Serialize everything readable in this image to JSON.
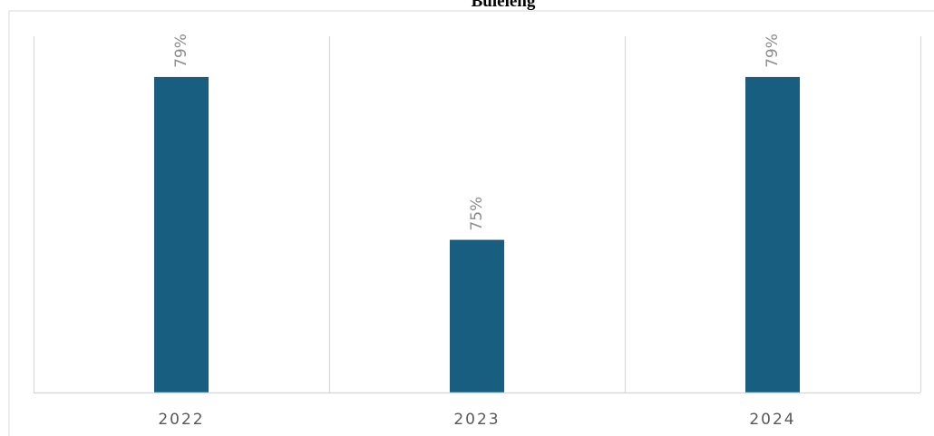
{
  "chart_data": {
    "type": "bar",
    "title": "Buleleng",
    "categories": [
      "2022",
      "2023",
      "2024"
    ],
    "values": [
      79,
      75,
      79
    ],
    "data_labels": [
      "79%",
      "75%",
      "79%"
    ],
    "value_unit": "%",
    "ylim": [
      71.25,
      80
    ],
    "y_axis_visible": false,
    "grid": "vertical category separators",
    "legend": "none",
    "bar_color": "#175e80",
    "grid_color": "#d9d9d9",
    "axis_color": "#d9d9d9"
  }
}
